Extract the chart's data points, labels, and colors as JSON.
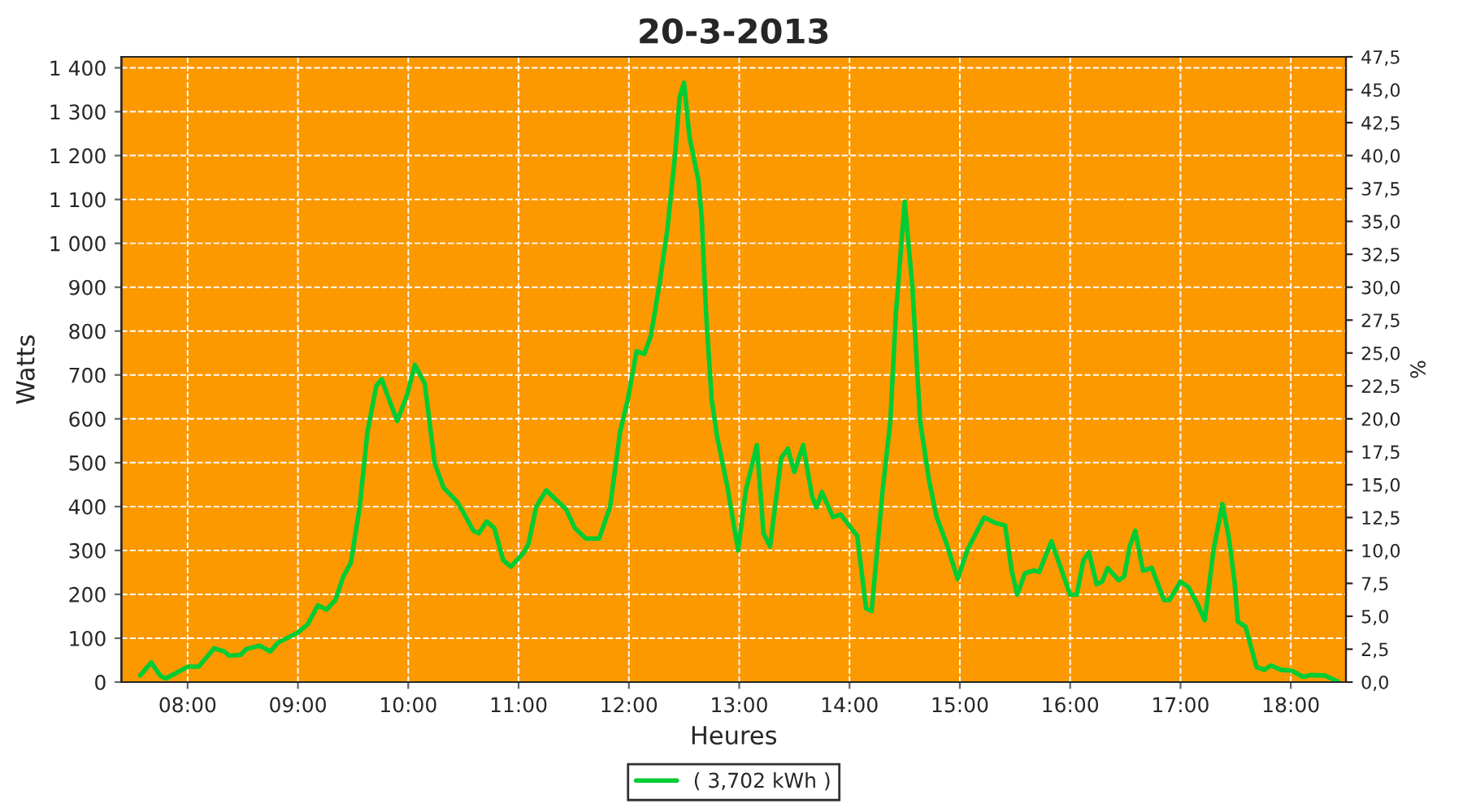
{
  "chart_data": {
    "type": "line",
    "title": "20-3-2013",
    "xlabel": "Heures",
    "ylabel": "Watts",
    "y2label": "%",
    "grid": true,
    "legend": "bottom",
    "marker": "none",
    "line_style": "solid",
    "xlim": [
      7.4,
      18.5
    ],
    "xticks": [
      {
        "value": 8,
        "label": "08:00"
      },
      {
        "value": 9,
        "label": "09:00"
      },
      {
        "value": 10,
        "label": "10:00"
      },
      {
        "value": 11,
        "label": "11:00"
      },
      {
        "value": 12,
        "label": "12:00"
      },
      {
        "value": 13,
        "label": "13:00"
      },
      {
        "value": 14,
        "label": "14:00"
      },
      {
        "value": 15,
        "label": "15:00"
      },
      {
        "value": 16,
        "label": "16:00"
      },
      {
        "value": 17,
        "label": "17:00"
      },
      {
        "value": 18,
        "label": "18:00"
      }
    ],
    "ylim": [
      0,
      1425
    ],
    "yticks": [
      0,
      100,
      200,
      300,
      400,
      500,
      600,
      700,
      800,
      900,
      {
        "value": 1000,
        "label": "1 000"
      },
      {
        "value": 1100,
        "label": "1 100"
      },
      {
        "value": 1200,
        "label": "1 200"
      },
      {
        "value": 1300,
        "label": "1 300"
      },
      {
        "value": 1400,
        "label": "1 400"
      }
    ],
    "y2lim": [
      0,
      47.5
    ],
    "y2ticks": [
      {
        "value": 0,
        "label": "0,0"
      },
      {
        "value": 2.5,
        "label": "2,5"
      },
      {
        "value": 5,
        "label": "5,0"
      },
      {
        "value": 7.5,
        "label": "7,5"
      },
      {
        "value": 10,
        "label": "10,0"
      },
      {
        "value": 12.5,
        "label": "12,5"
      },
      {
        "value": 15,
        "label": "15,0"
      },
      {
        "value": 17.5,
        "label": "17,5"
      },
      {
        "value": 20,
        "label": "20,0"
      },
      {
        "value": 22.5,
        "label": "22,5"
      },
      {
        "value": 25,
        "label": "25,0"
      },
      {
        "value": 27.5,
        "label": "27,5"
      },
      {
        "value": 30,
        "label": "30,0"
      },
      {
        "value": 32.5,
        "label": "32,5"
      },
      {
        "value": 35,
        "label": "35,0"
      },
      {
        "value": 37.5,
        "label": "37,5"
      },
      {
        "value": 40,
        "label": "40,0"
      },
      {
        "value": 42.5,
        "label": "42,5"
      },
      {
        "value": 45,
        "label": "45,0"
      },
      {
        "value": 47.5,
        "label": "47,5"
      }
    ],
    "series": [
      {
        "name": "( 3,702 kWh )",
        "color": "#00cc33",
        "x": [
          7.57,
          7.67,
          7.75,
          7.8,
          7.89,
          8.0,
          8.1,
          8.24,
          8.33,
          8.38,
          8.48,
          8.53,
          8.65,
          8.75,
          8.82,
          9.0,
          9.09,
          9.18,
          9.26,
          9.34,
          9.41,
          9.48,
          9.56,
          9.63,
          9.71,
          9.76,
          9.81,
          9.9,
          9.99,
          10.06,
          10.15,
          10.24,
          10.32,
          10.44,
          10.51,
          10.59,
          10.64,
          10.71,
          10.78,
          10.86,
          10.93,
          11.05,
          11.09,
          11.16,
          11.25,
          11.43,
          11.51,
          11.61,
          11.73,
          11.83,
          11.92,
          11.99,
          12.07,
          12.14,
          12.2,
          12.28,
          12.35,
          12.42,
          12.46,
          12.5,
          12.55,
          12.63,
          12.66,
          12.7,
          12.75,
          12.8,
          12.89,
          12.99,
          13.06,
          13.16,
          13.22,
          13.28,
          13.38,
          13.44,
          13.5,
          13.58,
          13.66,
          13.7,
          13.75,
          13.85,
          13.92,
          14.07,
          14.15,
          14.2,
          14.3,
          14.37,
          14.42,
          14.5,
          14.57,
          14.64,
          14.72,
          14.79,
          14.88,
          14.98,
          15.07,
          15.22,
          15.32,
          15.41,
          15.47,
          15.52,
          15.59,
          15.67,
          15.72,
          15.83,
          15.89,
          16.0,
          16.06,
          16.12,
          16.17,
          16.24,
          16.29,
          16.34,
          16.44,
          16.49,
          16.54,
          16.59,
          16.66,
          16.74,
          16.85,
          16.9,
          17.0,
          17.07,
          17.15,
          17.22,
          17.3,
          17.38,
          17.44,
          17.49,
          17.52,
          17.59,
          17.69,
          17.76,
          17.82,
          17.91,
          18.01,
          18.11,
          18.18,
          18.31,
          18.43
        ],
        "values": [
          15,
          45,
          15,
          8,
          20,
          35,
          35,
          77,
          70,
          60,
          62,
          75,
          83,
          70,
          90,
          113,
          132,
          175,
          165,
          187,
          240,
          272,
          400,
          570,
          675,
          690,
          655,
          595,
          655,
          723,
          680,
          498,
          443,
          412,
          382,
          345,
          339,
          366,
          351,
          278,
          263,
          296,
          315,
          400,
          437,
          394,
          351,
          327,
          327,
          400,
          570,
          644,
          754,
          748,
          790,
          912,
          1034,
          1205,
          1333,
          1366,
          1241,
          1144,
          1059,
          839,
          644,
          559,
          449,
          300,
          437,
          540,
          339,
          309,
          510,
          532,
          479,
          540,
          424,
          398,
          433,
          376,
          382,
          333,
          168,
          162,
          437,
          595,
          839,
          1095,
          900,
          595,
          461,
          376,
          315,
          235,
          302,
          375,
          363,
          357,
          254,
          199,
          248,
          254,
          251,
          321,
          278,
          199,
          199,
          278,
          296,
          223,
          229,
          260,
          232,
          241,
          309,
          345,
          254,
          260,
          187,
          187,
          229,
          217,
          180,
          141,
          302,
          406,
          327,
          229,
          138,
          126,
          34,
          28,
          38,
          28,
          26,
          12,
          16,
          15,
          1
        ]
      }
    ]
  }
}
